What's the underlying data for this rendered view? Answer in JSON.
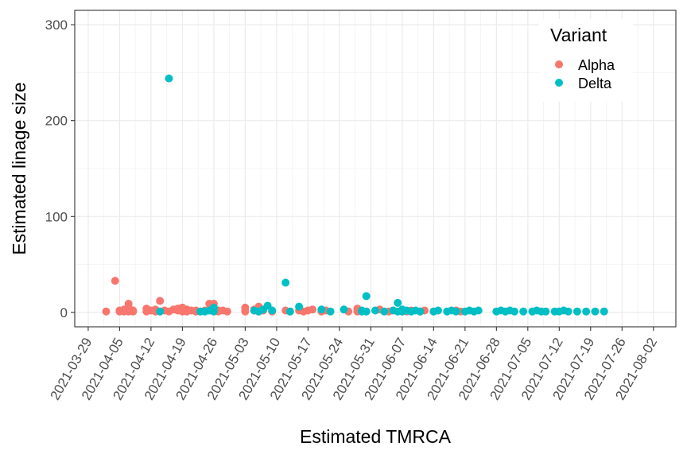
{
  "chart_data": {
    "type": "scatter",
    "xlabel": "Estimated TMRCA",
    "ylabel": "Estimated linage size",
    "x_axis_type": "date",
    "xlim": [
      "2021-03-26",
      "2021-08-07"
    ],
    "ylim": [
      -15,
      315
    ],
    "x_ticks": [
      "2021-03-29",
      "2021-04-05",
      "2021-04-12",
      "2021-04-19",
      "2021-04-26",
      "2021-05-03",
      "2021-05-10",
      "2021-05-17",
      "2021-05-24",
      "2021-05-31",
      "2021-06-07",
      "2021-06-14",
      "2021-06-21",
      "2021-06-28",
      "2021-07-05",
      "2021-07-12",
      "2021-07-19",
      "2021-07-26",
      "2021-08-02"
    ],
    "y_ticks": [
      0,
      100,
      200,
      300
    ],
    "grid": true,
    "theme": "bw",
    "legend": {
      "title": "Variant",
      "placement": "top-right-inside",
      "entries": [
        "Alpha",
        "Delta"
      ]
    },
    "colors": {
      "Alpha": "#F8766D",
      "Delta": "#00BFC4"
    },
    "series": [
      {
        "name": "Alpha",
        "points": [
          [
            "2021-04-02",
            1
          ],
          [
            "2021-04-04",
            33
          ],
          [
            "2021-04-05",
            1
          ],
          [
            "2021-04-05",
            2
          ],
          [
            "2021-04-06",
            3
          ],
          [
            "2021-04-06",
            1
          ],
          [
            "2021-04-07",
            2
          ],
          [
            "2021-04-07",
            5
          ],
          [
            "2021-04-07",
            9
          ],
          [
            "2021-04-07",
            1
          ],
          [
            "2021-04-08",
            2
          ],
          [
            "2021-04-08",
            1
          ],
          [
            "2021-04-11",
            4
          ],
          [
            "2021-04-11",
            1
          ],
          [
            "2021-04-12",
            2
          ],
          [
            "2021-04-13",
            3
          ],
          [
            "2021-04-13",
            1
          ],
          [
            "2021-04-14",
            12
          ],
          [
            "2021-04-14",
            1
          ],
          [
            "2021-04-15",
            2
          ],
          [
            "2021-04-16",
            1
          ],
          [
            "2021-04-17",
            3
          ],
          [
            "2021-04-18",
            2
          ],
          [
            "2021-04-18",
            4
          ],
          [
            "2021-04-19",
            5
          ],
          [
            "2021-04-19",
            1
          ],
          [
            "2021-04-20",
            3
          ],
          [
            "2021-04-20",
            1
          ],
          [
            "2021-04-21",
            2
          ],
          [
            "2021-04-22",
            1
          ],
          [
            "2021-04-22",
            2
          ],
          [
            "2021-04-23",
            1
          ],
          [
            "2021-04-24",
            2
          ],
          [
            "2021-04-25",
            9
          ],
          [
            "2021-04-25",
            2
          ],
          [
            "2021-04-26",
            9
          ],
          [
            "2021-04-26",
            4
          ],
          [
            "2021-04-27",
            2
          ],
          [
            "2021-04-27",
            1
          ],
          [
            "2021-04-28",
            2
          ],
          [
            "2021-04-29",
            1
          ],
          [
            "2021-05-03",
            1
          ],
          [
            "2021-05-03",
            2
          ],
          [
            "2021-05-03",
            5
          ],
          [
            "2021-05-05",
            2
          ],
          [
            "2021-05-05",
            3
          ],
          [
            "2021-05-06",
            6
          ],
          [
            "2021-05-06",
            1
          ],
          [
            "2021-05-07",
            2
          ],
          [
            "2021-05-09",
            1
          ],
          [
            "2021-05-12",
            2
          ],
          [
            "2021-05-13",
            1
          ],
          [
            "2021-05-15",
            2
          ],
          [
            "2021-05-16",
            1
          ],
          [
            "2021-05-17",
            2
          ],
          [
            "2021-05-18",
            3
          ],
          [
            "2021-05-20",
            1
          ],
          [
            "2021-05-21",
            2
          ],
          [
            "2021-05-26",
            1
          ],
          [
            "2021-05-28",
            4
          ],
          [
            "2021-05-28",
            1
          ],
          [
            "2021-06-02",
            3
          ],
          [
            "2021-06-04",
            1
          ],
          [
            "2021-06-05",
            2
          ],
          [
            "2021-06-08",
            1
          ],
          [
            "2021-06-09",
            2
          ],
          [
            "2021-06-11",
            1
          ],
          [
            "2021-06-12",
            2
          ],
          [
            "2021-06-14",
            1
          ],
          [
            "2021-06-19",
            2
          ],
          [
            "2021-06-20",
            1
          ]
        ]
      },
      {
        "name": "Delta",
        "points": [
          [
            "2021-04-14",
            1
          ],
          [
            "2021-04-16",
            244
          ],
          [
            "2021-04-23",
            1
          ],
          [
            "2021-04-24",
            1
          ],
          [
            "2021-04-25",
            2
          ],
          [
            "2021-04-26",
            5
          ],
          [
            "2021-04-26",
            1
          ],
          [
            "2021-05-05",
            2
          ],
          [
            "2021-05-06",
            1
          ],
          [
            "2021-05-07",
            3
          ],
          [
            "2021-05-08",
            7
          ],
          [
            "2021-05-09",
            2
          ],
          [
            "2021-05-12",
            31
          ],
          [
            "2021-05-13",
            1
          ],
          [
            "2021-05-15",
            6
          ],
          [
            "2021-05-20",
            3
          ],
          [
            "2021-05-22",
            1
          ],
          [
            "2021-05-25",
            3
          ],
          [
            "2021-05-29",
            1
          ],
          [
            "2021-05-29",
            2
          ],
          [
            "2021-05-30",
            17
          ],
          [
            "2021-05-30",
            1
          ],
          [
            "2021-06-01",
            2
          ],
          [
            "2021-06-03",
            1
          ],
          [
            "2021-06-05",
            2
          ],
          [
            "2021-06-06",
            10
          ],
          [
            "2021-06-06",
            1
          ],
          [
            "2021-06-07",
            3
          ],
          [
            "2021-06-07",
            1
          ],
          [
            "2021-06-08",
            2
          ],
          [
            "2021-06-09",
            1
          ],
          [
            "2021-06-10",
            2
          ],
          [
            "2021-06-11",
            1
          ],
          [
            "2021-06-14",
            1
          ],
          [
            "2021-06-15",
            2
          ],
          [
            "2021-06-17",
            1
          ],
          [
            "2021-06-18",
            2
          ],
          [
            "2021-06-19",
            1
          ],
          [
            "2021-06-21",
            1
          ],
          [
            "2021-06-22",
            2
          ],
          [
            "2021-06-23",
            1
          ],
          [
            "2021-06-24",
            2
          ],
          [
            "2021-06-28",
            1
          ],
          [
            "2021-06-29",
            2
          ],
          [
            "2021-06-30",
            1
          ],
          [
            "2021-07-01",
            2
          ],
          [
            "2021-07-02",
            1
          ],
          [
            "2021-07-04",
            1
          ],
          [
            "2021-07-06",
            1
          ],
          [
            "2021-07-07",
            2
          ],
          [
            "2021-07-08",
            1
          ],
          [
            "2021-07-09",
            1
          ],
          [
            "2021-07-11",
            1
          ],
          [
            "2021-07-12",
            1
          ],
          [
            "2021-07-13",
            2
          ],
          [
            "2021-07-14",
            1
          ],
          [
            "2021-07-16",
            1
          ],
          [
            "2021-07-18",
            1
          ],
          [
            "2021-07-20",
            1
          ],
          [
            "2021-07-22",
            1
          ]
        ]
      }
    ]
  }
}
